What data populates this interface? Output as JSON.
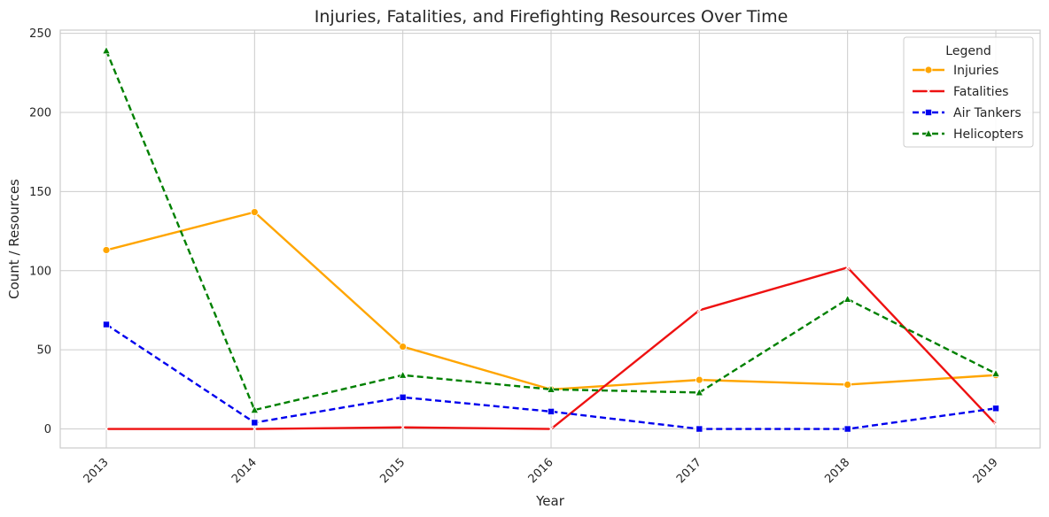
{
  "chart_data": {
    "type": "line",
    "title": "Injuries, Fatalities, and Firefighting Resources Over Time",
    "xlabel": "Year",
    "ylabel": "Count / Resources",
    "x": [
      "2013",
      "2014",
      "2015",
      "2016",
      "2017",
      "2018",
      "2019"
    ],
    "yticks": [
      "0",
      "50",
      "100",
      "150",
      "200",
      "250"
    ],
    "ylim": [
      -12,
      252
    ],
    "grid": true,
    "legend": {
      "title": "Legend",
      "placement": "top-right"
    },
    "series": [
      {
        "name": "Injuries",
        "values": [
          113,
          137,
          52,
          25,
          31,
          28,
          34
        ],
        "color": "#FFA500",
        "dash": "solid",
        "marker": "circle"
      },
      {
        "name": "Fatalities",
        "values": [
          0,
          0,
          1,
          0,
          75,
          102,
          3
        ],
        "color": "#EE1111",
        "dash": "solid",
        "marker": "x"
      },
      {
        "name": "Air Tankers",
        "values": [
          66,
          4,
          20,
          11,
          0,
          0,
          13
        ],
        "color": "#0000EE",
        "dash": "dashed",
        "marker": "square"
      },
      {
        "name": "Helicopters",
        "values": [
          239,
          12,
          34,
          25,
          23,
          82,
          35
        ],
        "color": "#008000",
        "dash": "dashed",
        "marker": "triangle"
      }
    ]
  }
}
